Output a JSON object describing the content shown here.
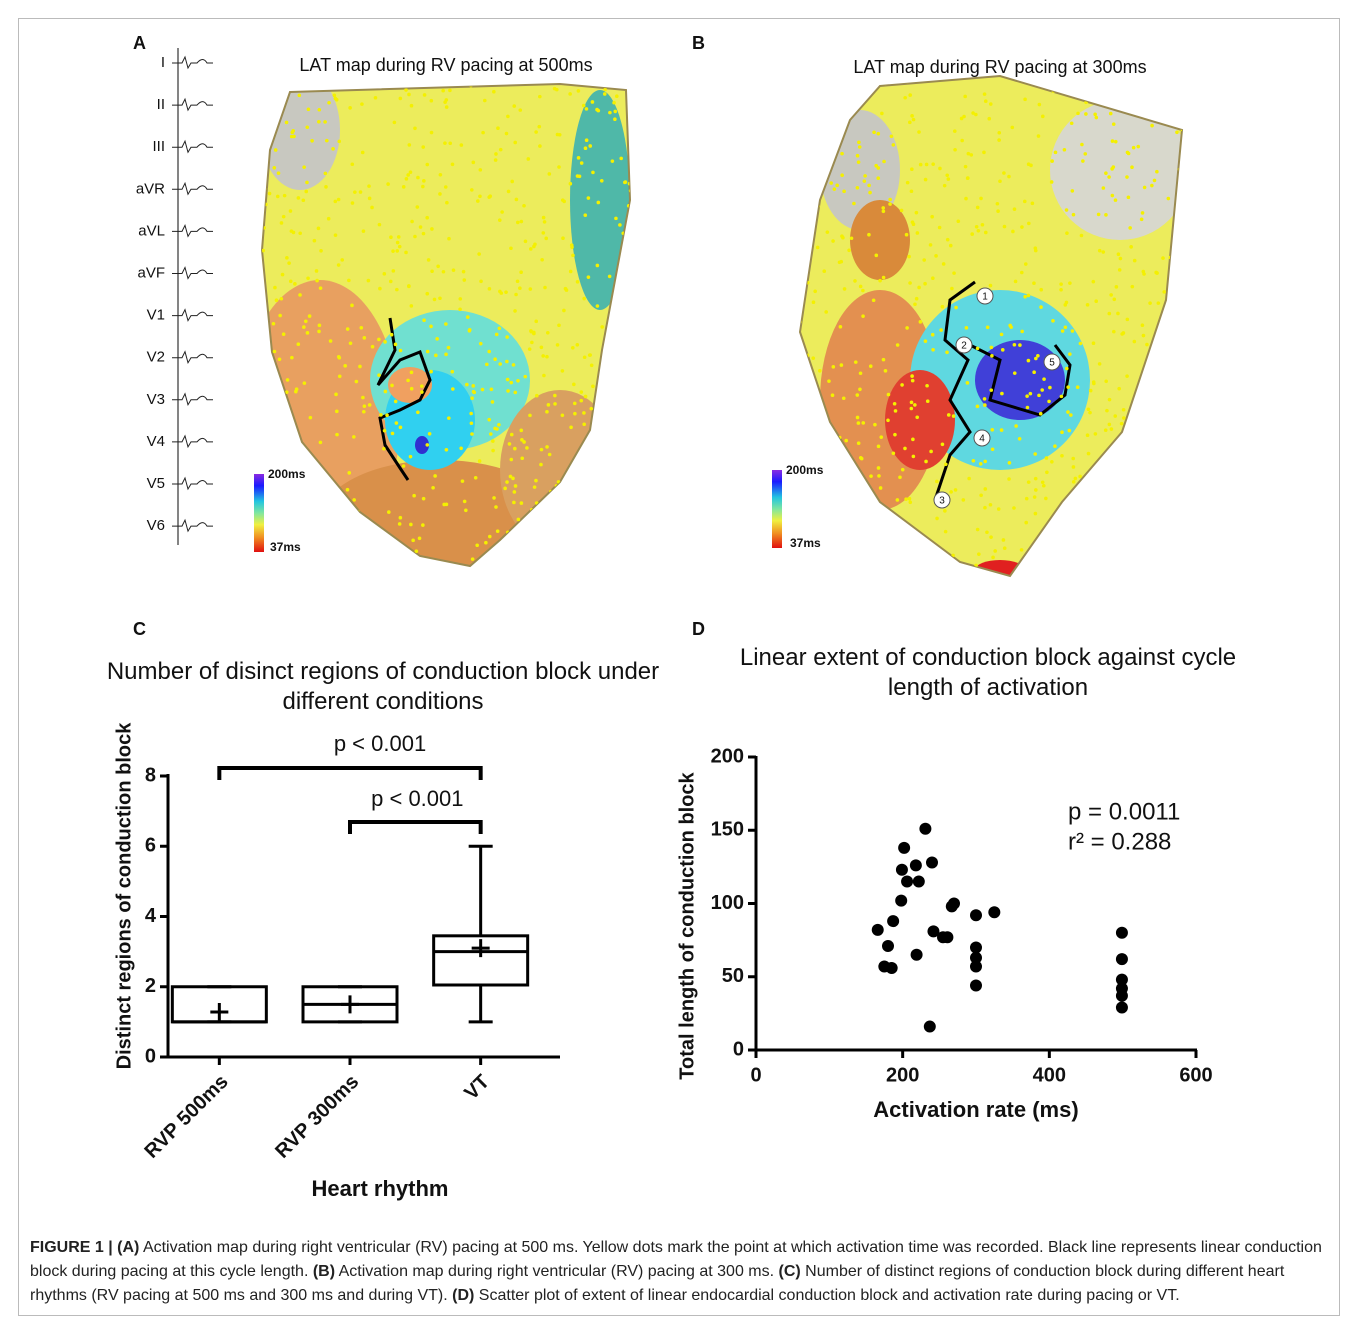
{
  "panels": [
    {
      "label": "A",
      "title": "LAT map during RV pacing at 500ms",
      "leads": [
        "I",
        "II",
        "III",
        "aVR",
        "aVL",
        "aVF",
        "V1",
        "V2",
        "V3",
        "V4",
        "V5",
        "V6"
      ],
      "scale": [
        "200ms",
        "37ms"
      ]
    },
    {
      "label": "B",
      "title": "LAT map during RV pacing at 300ms",
      "scale": [
        "200ms",
        "37ms"
      ],
      "markers": [
        "1",
        "2",
        "3",
        "4",
        "5"
      ]
    }
  ],
  "chart_data": [
    {
      "label": "C",
      "type": "box",
      "title": "Number of disinct regions of conduction block under different conditions",
      "x_label": "Heart rhythm",
      "y_label": "Distinct regions of conduction block",
      "categories": [
        "RVP 500ms",
        "RVP 300ms",
        "VT"
      ],
      "min": [
        1,
        1,
        1
      ],
      "q1": [
        1,
        1,
        2.05
      ],
      "median": [
        1,
        1.5,
        3
      ],
      "q3": [
        2,
        2,
        3.45
      ],
      "max": [
        2,
        2,
        6
      ],
      "mean": [
        1.28,
        1.5,
        3.1
      ],
      "ylim": [
        0,
        8
      ],
      "yticks": [
        0,
        2,
        4,
        6,
        8
      ],
      "color": "#000000",
      "annotations": [
        "p < 0.001",
        "p < 0.001"
      ]
    },
    {
      "label": "D",
      "type": "scatter",
      "title": "Linear extent of conduction block against cycle length of activation",
      "x_label": "Activation rate (ms)",
      "y_label": "Total length of conduction block",
      "x": [
        166,
        180,
        175,
        185,
        187,
        198,
        202,
        199,
        206,
        218,
        222,
        231,
        240,
        219,
        242,
        255,
        261,
        267,
        270,
        237,
        300,
        300,
        300,
        300,
        300,
        325,
        499,
        499,
        499,
        499,
        499,
        499
      ],
      "y": [
        82,
        71,
        57,
        56,
        88,
        102,
        138,
        123,
        115,
        126,
        115,
        151,
        128,
        65,
        81,
        77,
        77,
        98,
        100,
        16,
        92,
        70,
        63,
        57,
        44,
        94,
        80,
        62,
        48,
        42,
        37,
        29
      ],
      "xlim": [
        0,
        600
      ],
      "xticks": [
        0,
        200,
        400,
        600
      ],
      "ylim": [
        0,
        200
      ],
      "yticks": [
        0,
        50,
        100,
        150,
        200
      ],
      "color": "#000000",
      "annotations": [
        "p = 0.0011",
        "r² = 0.288"
      ]
    }
  ],
  "caption": [
    {
      "text": "FIGURE 1 | (A)",
      "bold": true
    },
    {
      "text": " Activation map during right ventricular (RV) pacing at 500 ms. Yellow dots mark the point at which activation time was recorded. Black line represents linear conduction block during pacing at this cycle length. ",
      "bold": false
    },
    {
      "text": "(B)",
      "bold": true
    },
    {
      "text": " Activation map during right ventricular (RV) pacing at 300 ms. ",
      "bold": false
    },
    {
      "text": "(C)",
      "bold": true
    },
    {
      "text": " Number of distinct regions of conduction block during different heart rhythms (RV pacing at 500 ms and 300 ms and during VT). ",
      "bold": false
    },
    {
      "text": "(D)",
      "bold": true
    },
    {
      "text": " Scatter plot of extent of linear endocardial conduction block and activation rate during pacing or VT.",
      "bold": false
    }
  ]
}
